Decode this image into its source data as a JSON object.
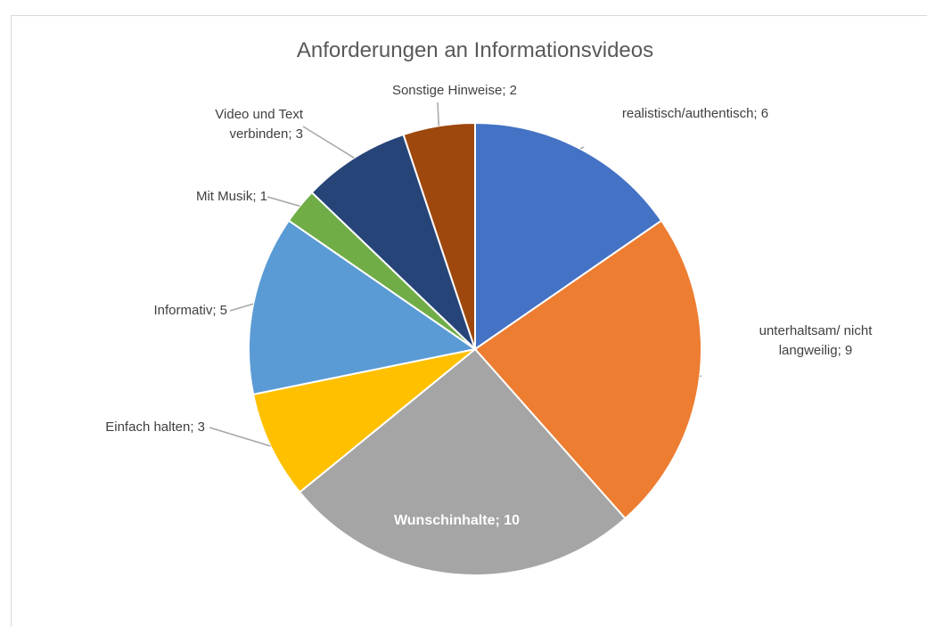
{
  "chart_data": {
    "type": "pie",
    "title": "Anforderungen an Informationsvideos",
    "categories": [
      "realistisch/authentisch",
      "unterhaltsam/ nicht langweilig",
      "Wunschinhalte",
      "Einfach halten",
      "Informativ",
      "Mit Musik",
      "Video und Text verbinden",
      "Sonstige Hinweise"
    ],
    "values": [
      6,
      9,
      10,
      3,
      5,
      1,
      3,
      2
    ],
    "value_labels": [
      "realistisch/authentisch; 6",
      "unterhaltsam/ nicht langweilig; 9",
      "Wunschinhalte; 10",
      "Einfach halten; 3",
      "Informativ; 5",
      "Mit Musik; 1",
      "Video und Text verbinden; 3",
      "Sonstige Hinweise; 2"
    ],
    "colors": [
      "#4472c4",
      "#ed7d31",
      "#a5a5a5",
      "#ffc000",
      "#5b9bd5",
      "#70ad47",
      "#264478",
      "#9e480e"
    ]
  }
}
